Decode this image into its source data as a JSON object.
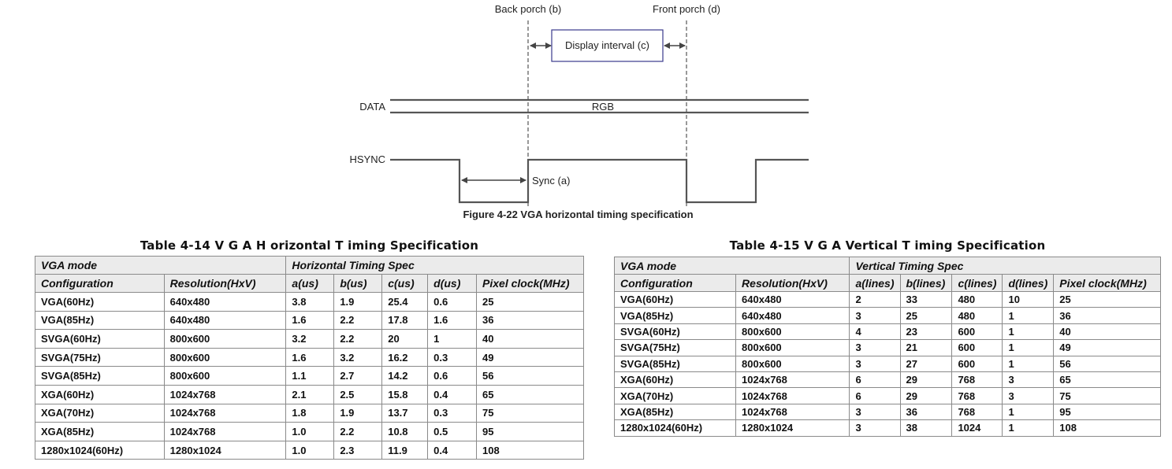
{
  "figure": {
    "labels": {
      "back_porch": "Back porch (b)",
      "front_porch": "Front porch (d)",
      "display_interval": "Display interval (c)",
      "data": "DATA",
      "rgb": "RGB",
      "hsync": "HSYNC",
      "sync": "Sync (a)"
    },
    "caption": "Figure 4-22    VGA horizontal timing specification"
  },
  "horizontal_table": {
    "title": "Table 4-14    V G A  H orizontal T iming Specification",
    "group_headers": [
      "VGA mode",
      "Horizontal Timing Spec"
    ],
    "columns": [
      "Configuration",
      "Resolution(HxV)",
      "a(us)",
      "b(us)",
      "c(us)",
      "d(us)",
      "Pixel clock(MHz)"
    ],
    "rows": [
      [
        "VGA(60Hz)",
        "640x480",
        "3.8",
        "1.9",
        "25.4",
        "0.6",
        "25"
      ],
      [
        "VGA(85Hz)",
        "640x480",
        "1.6",
        "2.2",
        "17.8",
        "1.6",
        "36"
      ],
      [
        "SVGA(60Hz)",
        "800x600",
        "3.2",
        "2.2",
        "20",
        "1",
        "40"
      ],
      [
        "SVGA(75Hz)",
        "800x600",
        "1.6",
        "3.2",
        "16.2",
        "0.3",
        "49"
      ],
      [
        "SVGA(85Hz)",
        "800x600",
        "1.1",
        "2.7",
        "14.2",
        "0.6",
        "56"
      ],
      [
        "XGA(60Hz)",
        "1024x768",
        "2.1",
        "2.5",
        "15.8",
        "0.4",
        "65"
      ],
      [
        "XGA(70Hz)",
        "1024x768",
        "1.8",
        "1.9",
        "13.7",
        "0.3",
        "75"
      ],
      [
        "XGA(85Hz)",
        "1024x768",
        "1.0",
        "2.2",
        "10.8",
        "0.5",
        "95"
      ],
      [
        "1280x1024(60Hz)",
        "1280x1024",
        "1.0",
        "2.3",
        "11.9",
        "0.4",
        "108"
      ]
    ]
  },
  "vertical_table": {
    "title": "Table 4-15    V G A  Vertical T iming Specification",
    "group_headers": [
      "VGA mode",
      "Vertical Timing Spec"
    ],
    "columns": [
      "Configuration",
      "Resolution(HxV)",
      "a(lines)",
      "b(lines)",
      "c(lines)",
      "d(lines)",
      "Pixel clock(MHz)"
    ],
    "rows": [
      [
        "VGA(60Hz)",
        "640x480",
        "2",
        "33",
        "480",
        "10",
        "25"
      ],
      [
        "VGA(85Hz)",
        "640x480",
        "3",
        "25",
        "480",
        "1",
        "36"
      ],
      [
        "SVGA(60Hz)",
        "800x600",
        "4",
        "23",
        "600",
        "1",
        "40"
      ],
      [
        "SVGA(75Hz)",
        "800x600",
        "3",
        "21",
        "600",
        "1",
        "49"
      ],
      [
        "SVGA(85Hz)",
        "800x600",
        "3",
        "27",
        "600",
        "1",
        "56"
      ],
      [
        "XGA(60Hz)",
        "1024x768",
        "6",
        "29",
        "768",
        "3",
        "65"
      ],
      [
        "XGA(70Hz)",
        "1024x768",
        "6",
        "29",
        "768",
        "3",
        "75"
      ],
      [
        "XGA(85Hz)",
        "1024x768",
        "3",
        "36",
        "768",
        "1",
        "95"
      ],
      [
        "1280x1024(60Hz)",
        "1280x1024",
        "3",
        "38",
        "1024",
        "1",
        "108"
      ]
    ]
  }
}
